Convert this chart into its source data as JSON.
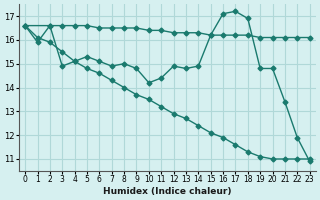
{
  "background_color": "#d6f0f0",
  "grid_color": "#b0d8d8",
  "line_color": "#1a7a6e",
  "xlabel": "Humidex (Indice chaleur)",
  "ylim": [
    10.5,
    17.5
  ],
  "xlim": [
    -0.5,
    23.5
  ],
  "yticks": [
    11,
    12,
    13,
    14,
    15,
    16,
    17
  ],
  "xtick_labels": [
    "0",
    "1",
    "2",
    "3",
    "4",
    "5",
    "6",
    "7",
    "8",
    "9",
    "10",
    "11",
    "12",
    "13",
    "14",
    "15",
    "16",
    "17",
    "18",
    "19",
    "20",
    "21",
    "22",
    "23"
  ],
  "line1_x": [
    0,
    1,
    2,
    3,
    4,
    5,
    6,
    7,
    8,
    9,
    10,
    11,
    12,
    13,
    14,
    15,
    16,
    17,
    18,
    19,
    20,
    21,
    22,
    23
  ],
  "line1_y": [
    16.6,
    15.9,
    16.6,
    16.6,
    16.6,
    16.6,
    16.5,
    16.5,
    16.5,
    16.5,
    16.4,
    16.4,
    16.3,
    16.3,
    16.3,
    16.2,
    16.2,
    16.2,
    16.2,
    16.1,
    16.1,
    16.1,
    16.1,
    16.1
  ],
  "line2_x": [
    0,
    2,
    3,
    4,
    5,
    6,
    7,
    8,
    9,
    10,
    11,
    12,
    13,
    14,
    15,
    16,
    17,
    18,
    19,
    20,
    21,
    22,
    23
  ],
  "line2_y": [
    16.6,
    16.6,
    14.9,
    15.1,
    15.3,
    15.1,
    14.9,
    15.0,
    14.8,
    14.2,
    14.4,
    14.9,
    14.8,
    14.9,
    16.2,
    17.1,
    17.2,
    16.9,
    14.8,
    14.8,
    13.4,
    11.9,
    10.9
  ],
  "line3_x": [
    0,
    1,
    2,
    3,
    4,
    5,
    6,
    7,
    8,
    9,
    10,
    11,
    12,
    13,
    14,
    15,
    16,
    17,
    18,
    19,
    20,
    21,
    22,
    23
  ],
  "line3_y": [
    16.6,
    16.1,
    15.9,
    15.5,
    15.1,
    14.8,
    14.6,
    14.3,
    14.0,
    13.7,
    13.5,
    13.2,
    12.9,
    12.7,
    12.4,
    12.1,
    11.9,
    11.6,
    11.3,
    11.1,
    11.0,
    11.0,
    11.0,
    11.0
  ]
}
